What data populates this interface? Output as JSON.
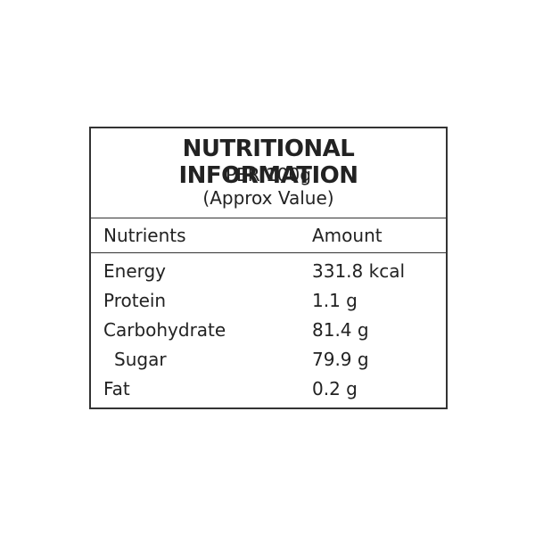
{
  "header": {
    "title": "NUTRITIONAL INFORMATION",
    "subtitle": "PER 100g",
    "note": "(Approx Value)"
  },
  "table": {
    "columns": [
      "Nutrients",
      "Amount"
    ],
    "rows": [
      [
        "Energy",
        "331.8 kcal"
      ],
      [
        "Protein",
        "1.1 g"
      ],
      [
        "Carbohydrate",
        "81.4 g"
      ],
      [
        "Sugar",
        "79.9 g"
      ],
      [
        "Fat",
        "0.2 g"
      ]
    ]
  }
}
